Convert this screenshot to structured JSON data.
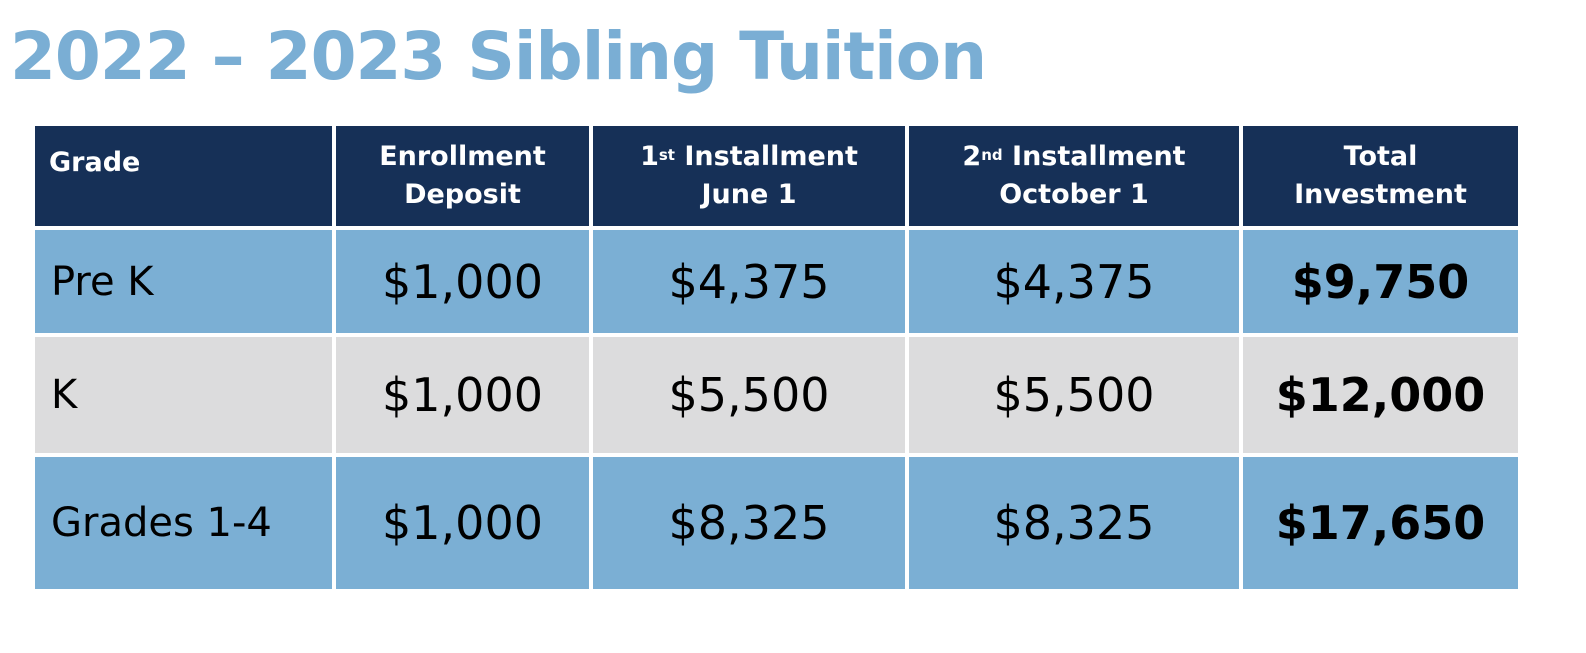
{
  "title": "2022 – 2023 Sibling Tuition",
  "colors": {
    "title": "#7aaed4",
    "header_bg": "#163057",
    "row_blue": "#7bafd4",
    "row_grey": "#dcdcdd"
  },
  "headers": [
    {
      "line1": "Grade",
      "line2": ""
    },
    {
      "line1": "Enrollment",
      "line2": "Deposit"
    },
    {
      "line1_pre": "1",
      "sup": "st",
      "line1_post": " Installment",
      "line2": "June 1"
    },
    {
      "line1_pre": "2",
      "sup": "nd",
      "line1_post": " Installment",
      "line2": "October 1"
    },
    {
      "line1": "Total",
      "line2": "Investment"
    }
  ],
  "rows": [
    {
      "grade": "Pre K",
      "deposit": "$1,000",
      "first": "$4,375",
      "second": "$4,375",
      "total": "$9,750"
    },
    {
      "grade": "K",
      "deposit": "$1,000",
      "first": "$5,500",
      "second": "$5,500",
      "total": "$12,000"
    },
    {
      "grade": "Grades 1-4",
      "deposit": "$1,000",
      "first": "$8,325",
      "second": "$8,325",
      "total": "$17,650"
    }
  ]
}
